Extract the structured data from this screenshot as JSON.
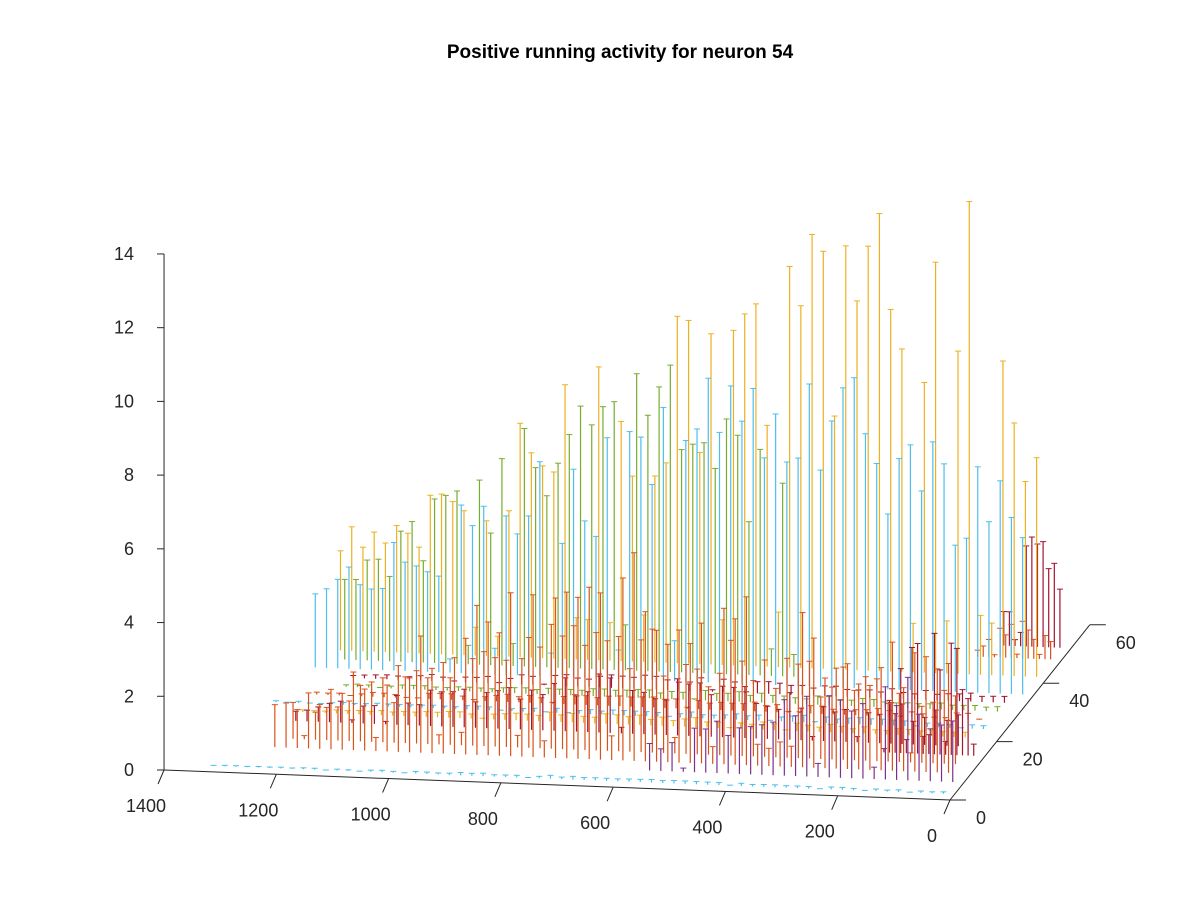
{
  "chart_data": {
    "type": "bar",
    "subtype": "3d-stem",
    "title": "Positive running activity for neuron 54",
    "xlabel": "",
    "ylabel": "",
    "zlabel": "",
    "x_axis": {
      "range": [
        0,
        1400
      ],
      "ticks": [
        0,
        200,
        400,
        600,
        800,
        1000,
        1200,
        1400
      ],
      "direction": "right-to-left"
    },
    "y_axis": {
      "range": [
        0,
        60
      ],
      "ticks": [
        0,
        20,
        40,
        60
      ],
      "direction": "depth"
    },
    "z_axis": {
      "range": [
        0,
        14
      ],
      "ticks": [
        0,
        2,
        4,
        6,
        8,
        10,
        12,
        14
      ]
    },
    "grid": false,
    "legend": "none",
    "series": [
      {
        "y": 2,
        "color": "#4DBEEE",
        "x_start": 20,
        "x_end": 1330,
        "step": 20,
        "peak_x": 700,
        "peak": 0.1
      },
      {
        "y": 6,
        "color": "#7E2F8E",
        "x_start": 20,
        "x_end": 560,
        "step": 20,
        "peak_x": 120,
        "peak": 3.3
      },
      {
        "y": 9,
        "color": "#D95319",
        "x_start": 40,
        "x_end": 1240,
        "step": 20,
        "peak_x": 620,
        "peak": 6.0
      },
      {
        "y": 12,
        "color": "#D95319",
        "x_start": 40,
        "x_end": 1230,
        "step": 20,
        "peak_x": 700,
        "peak": 3.8
      },
      {
        "y": 15,
        "color": "#A2142F",
        "x_start": 20,
        "x_end": 180,
        "step": 10,
        "peak_x": 100,
        "peak": 4.4
      },
      {
        "y": 18,
        "color": "#A2142F",
        "x_start": 60,
        "x_end": 1240,
        "step": 20,
        "peak_x": 700,
        "peak": 1.8
      },
      {
        "y": 21,
        "color": "#EDB120",
        "x_start": 60,
        "x_end": 1240,
        "step": 20,
        "peak_x": 700,
        "peak": 0.3
      },
      {
        "y": 24,
        "color": "#4DBEEE",
        "x_start": 40,
        "x_end": 1300,
        "step": 20,
        "peak_x": 300,
        "peak": 0.2
      },
      {
        "y": 27,
        "color": "#D95319",
        "x_start": 60,
        "x_end": 1240,
        "step": 20,
        "peak_x": 700,
        "peak": 0.3
      },
      {
        "y": 30,
        "color": "#77AC30",
        "x_start": 40,
        "x_end": 1210,
        "step": 20,
        "peak_x": 500,
        "peak": 0.3
      },
      {
        "y": 33,
        "color": "#A2142F",
        "x_start": 40,
        "x_end": 1200,
        "step": 20,
        "peak_x": 700,
        "peak": 0.4
      },
      {
        "y": 36,
        "color": "#4DBEEE",
        "x_start": 20,
        "x_end": 1280,
        "step": 20,
        "peak_x": 380,
        "peak": 10.0
      },
      {
        "y": 39,
        "color": "#77AC30",
        "x_start": 440,
        "x_end": 1240,
        "step": 20,
        "peak_x": 700,
        "peak": 9.6
      },
      {
        "y": 42,
        "color": "#EDB120",
        "x_start": 20,
        "x_end": 1260,
        "step": 20,
        "peak_x": 140,
        "peak": 14.5
      },
      {
        "y": 48,
        "color": "#D95319",
        "x_start": 20,
        "x_end": 150,
        "step": 10,
        "peak_x": 80,
        "peak": 1.2
      },
      {
        "y": 52,
        "color": "#A2142F",
        "x_start": 20,
        "x_end": 120,
        "step": 10,
        "peak_x": 60,
        "peak": 4.0
      }
    ]
  }
}
